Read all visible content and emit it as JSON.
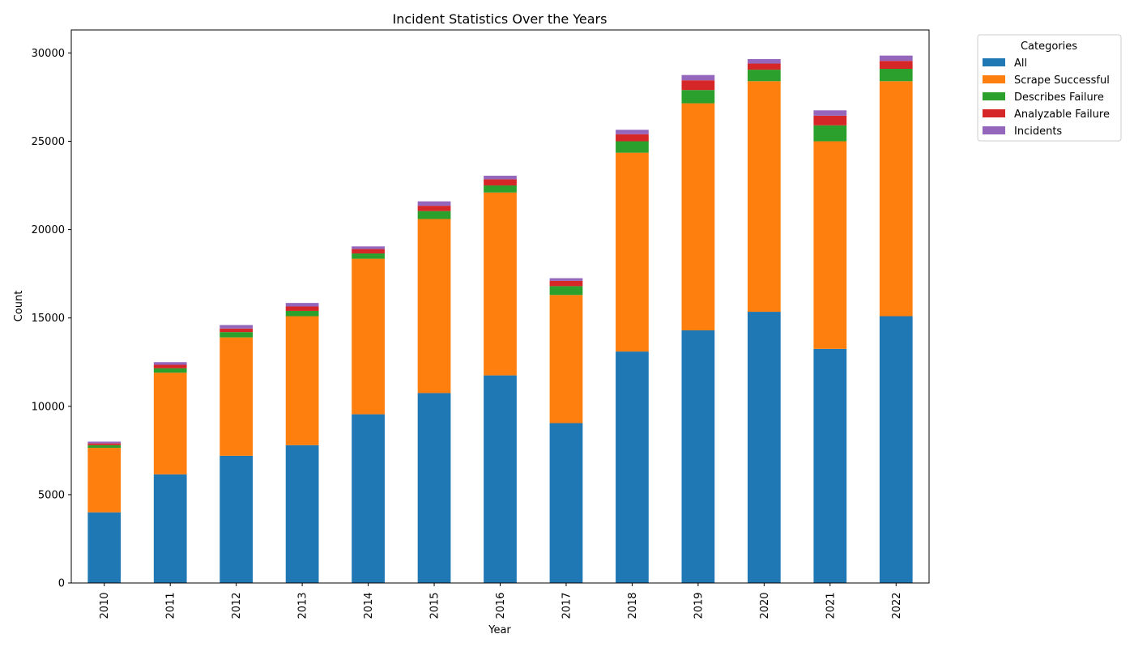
{
  "chart_data": {
    "type": "bar",
    "stacked": true,
    "title": "Incident Statistics Over the Years",
    "xlabel": "Year",
    "ylabel": "Count",
    "ylim": [
      0,
      31300
    ],
    "yticks": [
      0,
      5000,
      10000,
      15000,
      20000,
      25000,
      30000
    ],
    "categories": [
      "2010",
      "2011",
      "2012",
      "2013",
      "2014",
      "2015",
      "2016",
      "2017",
      "2018",
      "2019",
      "2020",
      "2021",
      "2022"
    ],
    "legend_title": "Categories",
    "legend_position": "outside top-right",
    "grid": false,
    "series": [
      {
        "name": "All",
        "color": "#1f77b4",
        "values": [
          4000,
          6150,
          7200,
          7800,
          9550,
          10750,
          11750,
          9050,
          13100,
          14300,
          15350,
          13250,
          15100
        ]
      },
      {
        "name": "Scrape Successful",
        "color": "#ff7f0e",
        "values": [
          3650,
          5750,
          6700,
          7300,
          8800,
          9850,
          10350,
          7250,
          11250,
          12850,
          13050,
          11750,
          13300
        ]
      },
      {
        "name": "Describes Failure",
        "color": "#2ca02c",
        "values": [
          150,
          250,
          300,
          300,
          300,
          450,
          400,
          500,
          650,
          750,
          650,
          900,
          700
        ]
      },
      {
        "name": "Analyzable Failure",
        "color": "#d62728",
        "values": [
          100,
          200,
          200,
          250,
          250,
          300,
          350,
          300,
          400,
          550,
          350,
          550,
          450
        ]
      },
      {
        "name": "Incidents",
        "color": "#9467bd",
        "values": [
          100,
          150,
          200,
          200,
          150,
          250,
          200,
          150,
          250,
          300,
          250,
          300,
          300
        ]
      }
    ]
  }
}
